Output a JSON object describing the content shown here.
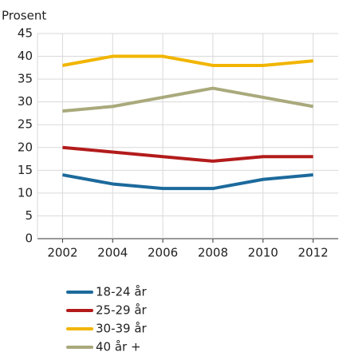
{
  "chart_data": {
    "type": "line",
    "y_label": "Prosent",
    "categories": [
      "2002",
      "2004",
      "2006",
      "2008",
      "2010",
      "2012"
    ],
    "series": [
      {
        "name": "18-24 år",
        "color": "#1c6a9c",
        "values": [
          14,
          12,
          11,
          11,
          13,
          14
        ]
      },
      {
        "name": "25-29 år",
        "color": "#b31b1b",
        "values": [
          20,
          19,
          18,
          17,
          18,
          18
        ]
      },
      {
        "name": "30-39 år",
        "color": "#f1b500",
        "values": [
          38,
          40,
          40,
          38,
          38,
          39
        ]
      },
      {
        "name": "40 år +",
        "color": "#a9a97c",
        "values": [
          28,
          29,
          31,
          33,
          31,
          29
        ]
      }
    ],
    "ylim": [
      0,
      45
    ],
    "yticks": [
      0,
      5,
      10,
      15,
      20,
      25,
      30,
      35,
      40,
      45
    ],
    "grid": true,
    "legend": "bottom"
  }
}
